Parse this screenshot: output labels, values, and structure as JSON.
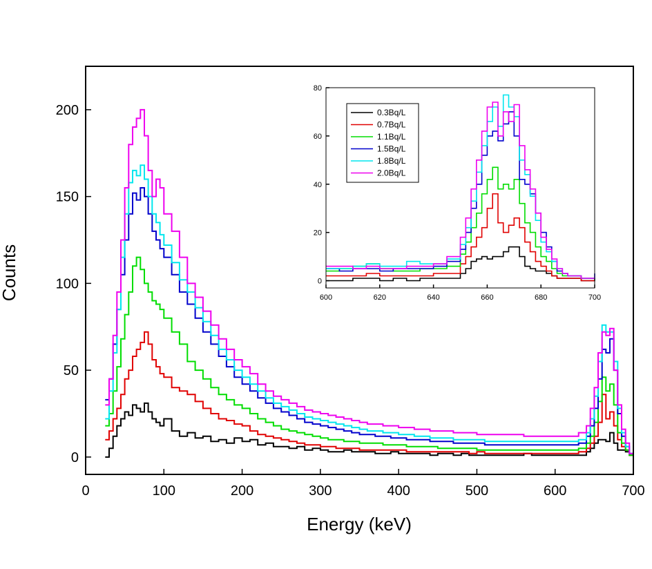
{
  "chart_data": [
    {
      "type": "line",
      "title": "",
      "xlabel": "Energy (keV)",
      "ylabel": "Counts",
      "xlim": [
        0,
        700
      ],
      "ylim": [
        -10,
        225
      ],
      "xticks": [
        0,
        100,
        200,
        300,
        400,
        500,
        600,
        700
      ],
      "yticks": [
        0,
        50,
        100,
        150,
        200
      ],
      "grid": false,
      "x": [
        25,
        30,
        35,
        40,
        45,
        50,
        55,
        60,
        65,
        70,
        75,
        80,
        85,
        90,
        95,
        100,
        110,
        120,
        130,
        140,
        150,
        160,
        170,
        180,
        190,
        200,
        210,
        220,
        230,
        240,
        250,
        260,
        270,
        280,
        290,
        300,
        310,
        320,
        330,
        340,
        350,
        360,
        370,
        380,
        390,
        400,
        410,
        420,
        430,
        440,
        450,
        460,
        470,
        480,
        490,
        500,
        510,
        520,
        530,
        540,
        550,
        560,
        570,
        580,
        590,
        600,
        610,
        620,
        630,
        640,
        645,
        650,
        655,
        660,
        665,
        670,
        675,
        680,
        685,
        690,
        695,
        700
      ],
      "series": [
        {
          "name": "0.3Bq/L",
          "color": "#000000",
          "values": [
            0,
            5,
            12,
            18,
            22,
            26,
            24,
            30,
            28,
            26,
            31,
            26,
            22,
            20,
            18,
            22,
            15,
            12,
            14,
            11,
            12,
            9,
            10,
            8,
            11,
            9,
            10,
            7,
            8,
            6,
            6,
            5,
            6,
            4,
            5,
            4,
            3,
            3,
            4,
            3,
            3,
            3,
            2,
            2,
            3,
            2,
            2,
            2,
            2,
            1,
            2,
            2,
            1,
            2,
            1,
            1,
            1,
            1,
            1,
            1,
            1,
            2,
            1,
            1,
            1,
            1,
            1,
            1,
            1,
            3,
            5,
            8,
            10,
            10,
            9,
            14,
            8,
            4,
            4,
            3,
            1,
            0
          ]
        },
        {
          "name": "0.7Bq/L",
          "color": "#e00000",
          "values": [
            10,
            15,
            22,
            28,
            36,
            45,
            50,
            58,
            62,
            66,
            72,
            65,
            56,
            52,
            48,
            46,
            40,
            38,
            36,
            32,
            28,
            25,
            22,
            21,
            19,
            18,
            15,
            13,
            12,
            11,
            10,
            9,
            8,
            7,
            7,
            6,
            6,
            5,
            5,
            5,
            4,
            4,
            4,
            4,
            4,
            4,
            3,
            3,
            3,
            3,
            3,
            3,
            3,
            3,
            2,
            3,
            2,
            2,
            2,
            2,
            2,
            2,
            2,
            2,
            2,
            2,
            2,
            2,
            3,
            5,
            8,
            12,
            20,
            36,
            22,
            26,
            18,
            10,
            6,
            4,
            1,
            0
          ]
        },
        {
          "name": "1.1Bq/L",
          "color": "#00dd00",
          "values": [
            18,
            25,
            38,
            52,
            68,
            82,
            95,
            110,
            115,
            108,
            100,
            95,
            90,
            88,
            85,
            80,
            72,
            65,
            55,
            50,
            45,
            40,
            36,
            33,
            30,
            28,
            25,
            22,
            20,
            18,
            16,
            15,
            14,
            13,
            12,
            11,
            10,
            10,
            9,
            9,
            8,
            8,
            8,
            7,
            7,
            7,
            6,
            6,
            6,
            6,
            5,
            5,
            5,
            5,
            5,
            4,
            4,
            4,
            4,
            4,
            4,
            4,
            4,
            4,
            4,
            4,
            4,
            4,
            5,
            8,
            12,
            20,
            32,
            46,
            38,
            42,
            30,
            14,
            8,
            4,
            1,
            0
          ]
        },
        {
          "name": "1.5Bq/L",
          "color": "#0000cc",
          "values": [
            33,
            45,
            65,
            85,
            105,
            125,
            140,
            152,
            148,
            155,
            150,
            140,
            130,
            125,
            120,
            115,
            105,
            95,
            88,
            80,
            72,
            65,
            58,
            52,
            46,
            42,
            38,
            34,
            31,
            28,
            26,
            24,
            22,
            20,
            19,
            18,
            17,
            16,
            15,
            14,
            13,
            13,
            12,
            12,
            11,
            11,
            10,
            10,
            10,
            9,
            9,
            9,
            8,
            8,
            8,
            8,
            7,
            7,
            7,
            7,
            7,
            7,
            7,
            7,
            7,
            7,
            7,
            7,
            8,
            12,
            18,
            28,
            45,
            62,
            60,
            68,
            50,
            25,
            12,
            6,
            2,
            0
          ]
        },
        {
          "name": "1.8Bq/L",
          "color": "#00e6ee",
          "values": [
            22,
            38,
            60,
            85,
            115,
            140,
            158,
            165,
            162,
            168,
            160,
            150,
            140,
            135,
            128,
            122,
            112,
            102,
            95,
            86,
            78,
            70,
            62,
            56,
            50,
            46,
            42,
            38,
            34,
            31,
            29,
            27,
            25,
            23,
            22,
            21,
            20,
            19,
            18,
            17,
            16,
            15,
            15,
            14,
            14,
            13,
            13,
            12,
            12,
            11,
            11,
            11,
            10,
            10,
            10,
            10,
            9,
            9,
            9,
            9,
            9,
            9,
            9,
            9,
            9,
            9,
            9,
            9,
            10,
            14,
            22,
            35,
            55,
            76,
            72,
            72,
            55,
            28,
            14,
            6,
            2,
            0
          ]
        },
        {
          "name": "2.0Bq/L",
          "color": "#ee00ee",
          "values": [
            30,
            45,
            70,
            95,
            125,
            155,
            180,
            190,
            195,
            200,
            185,
            165,
            150,
            160,
            155,
            140,
            130,
            115,
            100,
            92,
            84,
            76,
            68,
            62,
            56,
            52,
            48,
            42,
            38,
            35,
            33,
            31,
            29,
            27,
            26,
            25,
            24,
            23,
            22,
            21,
            20,
            19,
            19,
            18,
            18,
            17,
            17,
            16,
            16,
            15,
            15,
            15,
            14,
            14,
            14,
            13,
            13,
            13,
            13,
            13,
            13,
            12,
            12,
            12,
            12,
            12,
            12,
            12,
            14,
            18,
            28,
            40,
            60,
            72,
            70,
            74,
            50,
            30,
            16,
            8,
            2,
            0
          ]
        }
      ]
    },
    {
      "type": "line",
      "title": "",
      "xlabel": "",
      "ylabel": "",
      "xlim": [
        600,
        700
      ],
      "ylim": [
        -3,
        80
      ],
      "xticks": [
        600,
        620,
        640,
        660,
        680,
        700
      ],
      "yticks": [
        0,
        20,
        40,
        60,
        80
      ],
      "legend": "top-left",
      "x": [
        600,
        605,
        610,
        615,
        620,
        625,
        630,
        635,
        640,
        645,
        650,
        652,
        654,
        656,
        658,
        660,
        662,
        664,
        666,
        668,
        670,
        672,
        674,
        676,
        678,
        680,
        682,
        684,
        686,
        688,
        690,
        695,
        700
      ],
      "series": [
        {
          "name": "0.3Bq/L",
          "color": "#000000",
          "values": [
            0,
            0,
            1,
            1,
            0,
            1,
            0,
            1,
            1,
            1,
            3,
            5,
            8,
            9,
            10,
            9,
            10,
            10,
            12,
            14,
            14,
            10,
            6,
            5,
            4,
            4,
            3,
            2,
            1,
            1,
            1,
            0,
            1
          ]
        },
        {
          "name": "0.7Bq/L",
          "color": "#e00000",
          "values": [
            2,
            2,
            2,
            3,
            2,
            2,
            2,
            2,
            3,
            3,
            7,
            10,
            14,
            18,
            22,
            30,
            36,
            24,
            20,
            23,
            26,
            22,
            16,
            12,
            8,
            6,
            4,
            2,
            1,
            1,
            1,
            0,
            0
          ]
        },
        {
          "name": "1.1Bq/L",
          "color": "#00dd00",
          "values": [
            4,
            5,
            6,
            7,
            5,
            4,
            4,
            5,
            5,
            6,
            11,
            16,
            22,
            28,
            36,
            42,
            47,
            38,
            40,
            38,
            42,
            32,
            24,
            20,
            14,
            10,
            8,
            5,
            3,
            2,
            2,
            1,
            1
          ]
        },
        {
          "name": "1.5Bq/L",
          "color": "#0000cc",
          "values": [
            5,
            4,
            5,
            5,
            4,
            5,
            5,
            5,
            6,
            8,
            13,
            20,
            30,
            40,
            52,
            60,
            62,
            58,
            65,
            70,
            60,
            42,
            40,
            36,
            28,
            20,
            14,
            8,
            4,
            3,
            2,
            1,
            3
          ]
        },
        {
          "name": "1.8Bq/L",
          "color": "#00e6ee",
          "values": [
            5,
            5,
            6,
            7,
            6,
            6,
            8,
            7,
            7,
            9,
            15,
            22,
            33,
            45,
            56,
            66,
            72,
            64,
            77,
            72,
            68,
            50,
            44,
            35,
            25,
            16,
            12,
            8,
            5,
            3,
            2,
            1,
            1
          ]
        },
        {
          "name": "2.0Bq/L",
          "color": "#ee00ee",
          "values": [
            6,
            6,
            5,
            6,
            5,
            5,
            6,
            6,
            7,
            10,
            18,
            26,
            38,
            50,
            62,
            72,
            74,
            60,
            70,
            66,
            73,
            56,
            46,
            38,
            28,
            18,
            13,
            9,
            5,
            3,
            2,
            1,
            1
          ]
        }
      ]
    }
  ]
}
